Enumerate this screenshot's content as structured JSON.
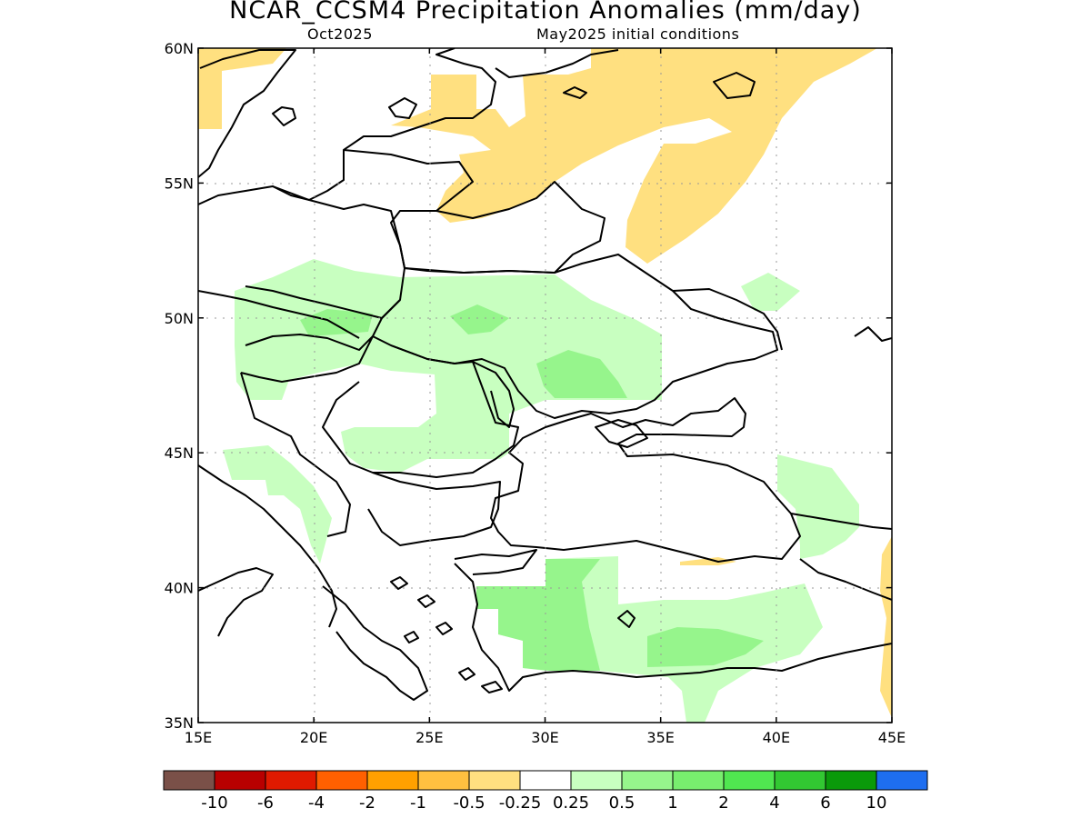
{
  "title": "NCAR_CCSM4 Precipitation Anomalies (mm/day)",
  "subtitle_left": "Oct2025",
  "subtitle_right": "May2025 initial conditions",
  "axes": {
    "lat_labels": [
      "60N",
      "55N",
      "50N",
      "45N",
      "40N",
      "35N"
    ],
    "lat_values": [
      60,
      55,
      50,
      45,
      40,
      35
    ],
    "lon_labels": [
      "15E",
      "20E",
      "25E",
      "30E",
      "35E",
      "40E",
      "45E"
    ],
    "lon_values": [
      15,
      20,
      25,
      30,
      35,
      40,
      45
    ]
  },
  "colorbar": {
    "colors": [
      "#7a5048",
      "#b80000",
      "#e01a00",
      "#ff6000",
      "#ffa000",
      "#ffc040",
      "#ffe080",
      "#ffffff",
      "#c8ffc0",
      "#96f58c",
      "#78ee6e",
      "#50e650",
      "#32c832",
      "#0a9a0a",
      "#1e6ef0"
    ],
    "labels": [
      "-10",
      "-6",
      "-4",
      "-2",
      "-1",
      "-0.5",
      "-0.25",
      "0.25",
      "0.5",
      "1",
      "2",
      "4",
      "6",
      "10"
    ]
  },
  "palette": {
    "dry": "#ffe080",
    "wet_light": "#c8ffc0",
    "wet_medium": "#96f58c"
  }
}
